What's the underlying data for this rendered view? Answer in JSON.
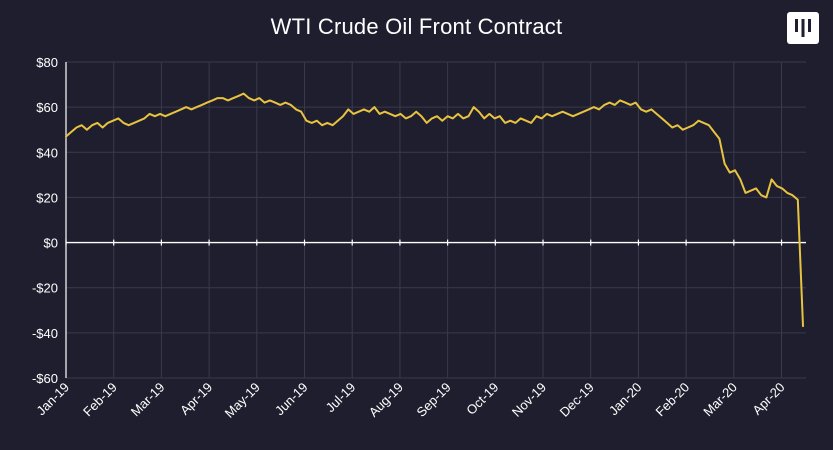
{
  "brand": {
    "logo_icon": "pitchbook-logo-icon",
    "background": "#1f1e2e",
    "line_color": "#e8c340",
    "grid_color": "#3a3a4c"
  },
  "chart_data": {
    "type": "line",
    "title": "WTI Crude Oil Front Contract",
    "xlabel": "",
    "ylabel": "",
    "ylim": [
      -60,
      80
    ],
    "y_ticks": [
      80,
      60,
      40,
      20,
      0,
      -20,
      -40,
      -60
    ],
    "y_tick_labels": [
      "$80",
      "$60",
      "$40",
      "$20",
      "$0",
      "-$20",
      "-$40",
      "-$60"
    ],
    "x_tick_labels": [
      "Jan-19",
      "Feb-19",
      "Mar-19",
      "Apr-19",
      "May-19",
      "Jun-19",
      "Jul-19",
      "Aug-19",
      "Sep-19",
      "Oct-19",
      "Nov-19",
      "Dec-19",
      "Jan-20",
      "Feb-20",
      "Mar-20",
      "Apr-20"
    ],
    "grid": true,
    "series": [
      {
        "values": [
          47,
          49,
          51,
          52,
          50,
          52,
          53,
          51,
          53,
          54,
          55,
          53,
          52,
          53,
          54,
          55,
          57,
          56,
          57,
          56,
          57,
          58,
          59,
          60,
          59,
          60,
          61,
          62,
          63,
          64,
          64,
          63,
          64,
          65,
          66,
          64,
          63,
          64,
          62,
          63,
          62,
          61,
          62,
          61,
          59,
          58,
          54,
          53,
          54,
          52,
          53,
          52,
          54,
          56,
          59,
          57,
          58,
          59,
          58,
          60,
          57,
          58,
          57,
          56,
          57,
          55,
          56,
          58,
          56,
          53,
          55,
          56,
          54,
          56,
          55,
          57,
          55,
          56,
          60,
          58,
          55,
          57,
          55,
          56,
          53,
          54,
          53,
          55,
          54,
          53,
          56,
          55,
          57,
          56,
          57,
          58,
          57,
          56,
          57,
          58,
          59,
          60,
          59,
          61,
          62,
          61,
          63,
          62,
          61,
          62,
          59,
          58,
          59,
          57,
          55,
          53,
          51,
          52,
          50,
          51,
          52,
          54,
          53,
          52,
          49,
          46,
          35,
          31,
          32,
          28,
          22,
          23,
          24,
          21,
          20,
          28,
          25,
          24,
          22,
          21,
          19,
          -37
        ]
      }
    ]
  }
}
